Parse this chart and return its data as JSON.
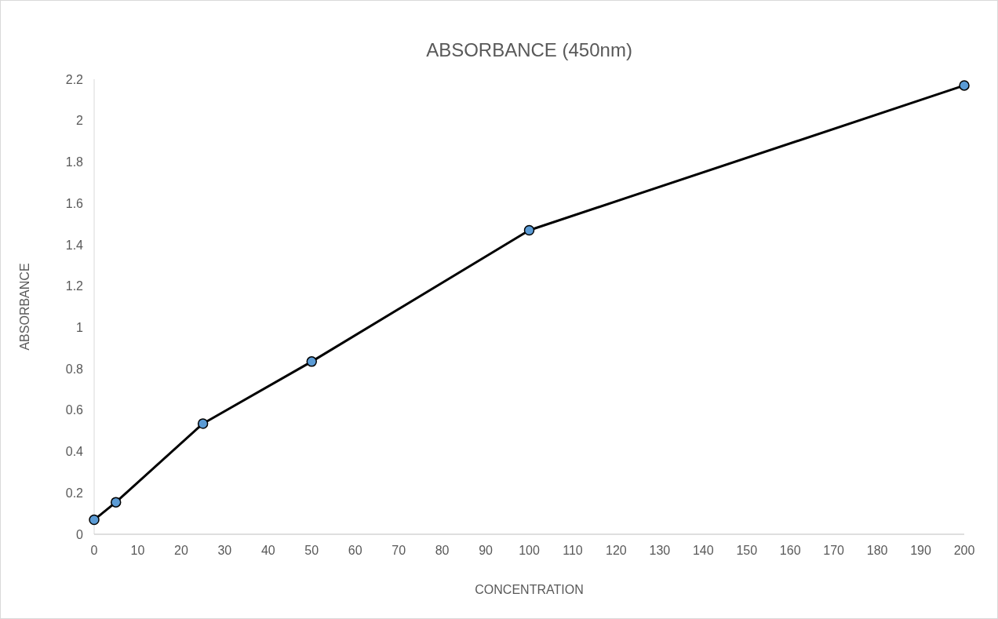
{
  "chart_data": {
    "type": "line",
    "title": "ABSORBANCE (450nm)",
    "xlabel": "CONCENTRATION",
    "ylabel": "ABSORBANCE",
    "x": [
      0,
      5,
      25,
      50,
      100,
      200
    ],
    "series": [
      {
        "color": "#000000",
        "values": [
          0.07,
          0.155,
          0.535,
          0.835,
          1.47,
          2.17
        ]
      }
    ],
    "xlim": [
      0,
      200
    ],
    "xticks": [
      0,
      10,
      20,
      30,
      40,
      50,
      60,
      70,
      80,
      90,
      100,
      110,
      120,
      130,
      140,
      150,
      160,
      170,
      180,
      190,
      200
    ],
    "ylim": [
      0,
      2.2
    ],
    "yticks": [
      0,
      0.2,
      0.4,
      0.6,
      0.8,
      1,
      1.2,
      1.4,
      1.6,
      1.8,
      2,
      2.2
    ],
    "grid": false,
    "marker": "circle",
    "line_style": "solid"
  }
}
